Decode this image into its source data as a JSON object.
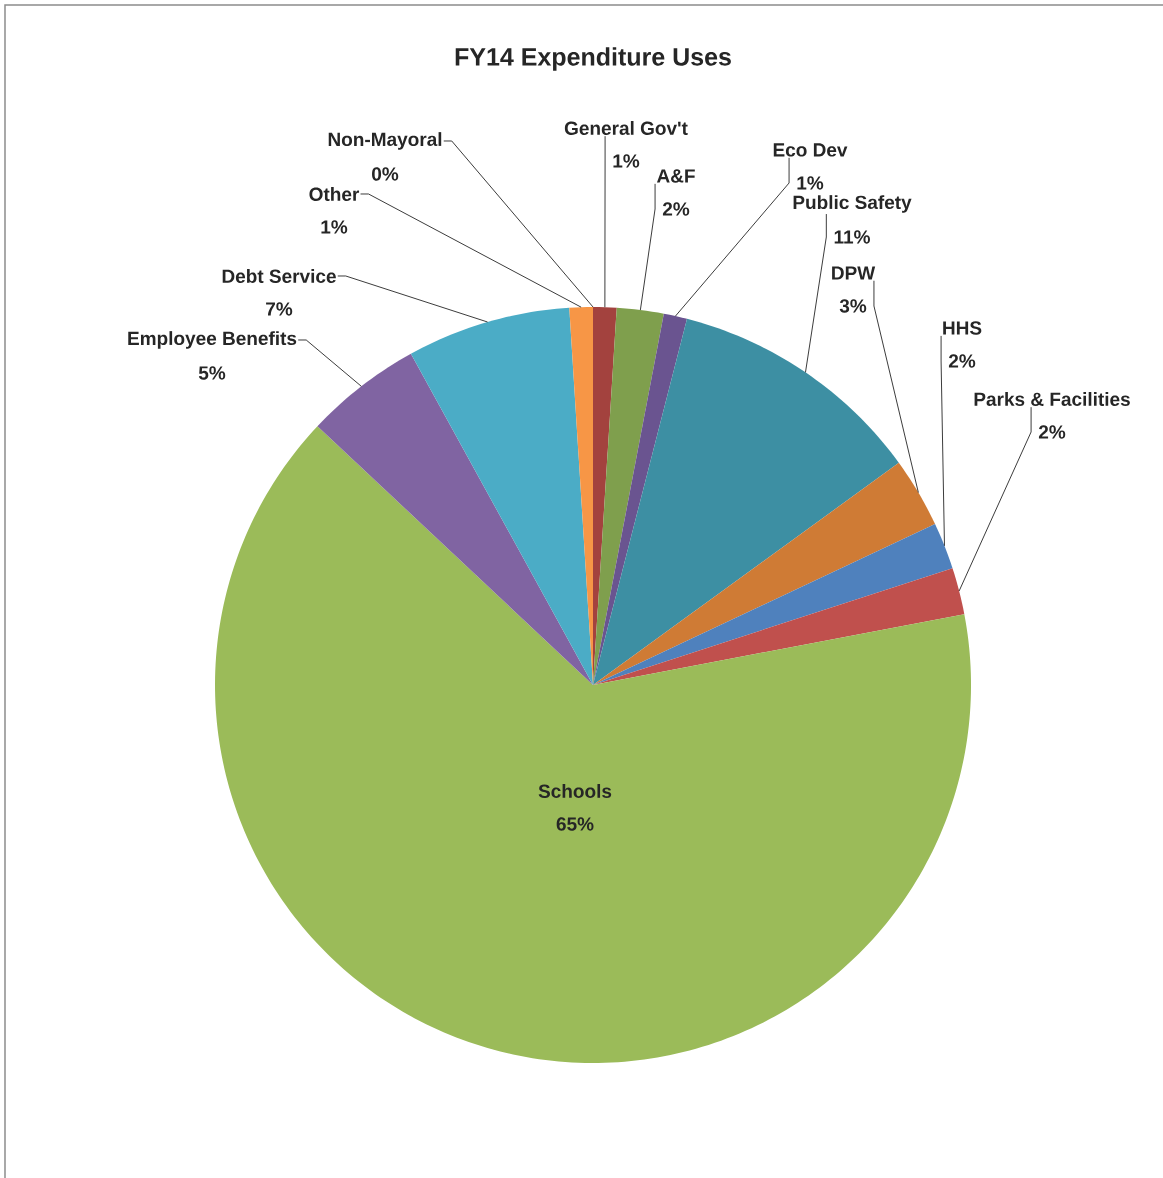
{
  "chart_data": {
    "type": "pie",
    "title": "FY14 Expenditure Uses",
    "categories": [
      "General Gov't",
      "A&F",
      "Eco Dev",
      "Public Safety",
      "DPW",
      "HHS",
      "Parks & Facilities",
      "Schools",
      "Employee Benefits",
      "Debt Service",
      "Other",
      "Non-Mayoral"
    ],
    "values": [
      1,
      2,
      1,
      11,
      3,
      2,
      2,
      65,
      5,
      7,
      1,
      0
    ],
    "colors": [
      "#a3423e",
      "#7f9f4d",
      "#6a5490",
      "#3d8fa3",
      "#cf7b35",
      "#4f81bd",
      "#c0504d",
      "#9bbb59",
      "#8064a2",
      "#4bacc6",
      "#f79646",
      "#3b6aa0"
    ],
    "value_labels": [
      "1%",
      "2%",
      "1%",
      "11%",
      "3%",
      "2%",
      "2%",
      "65%",
      "5%",
      "7%",
      "1%",
      "0%"
    ]
  }
}
